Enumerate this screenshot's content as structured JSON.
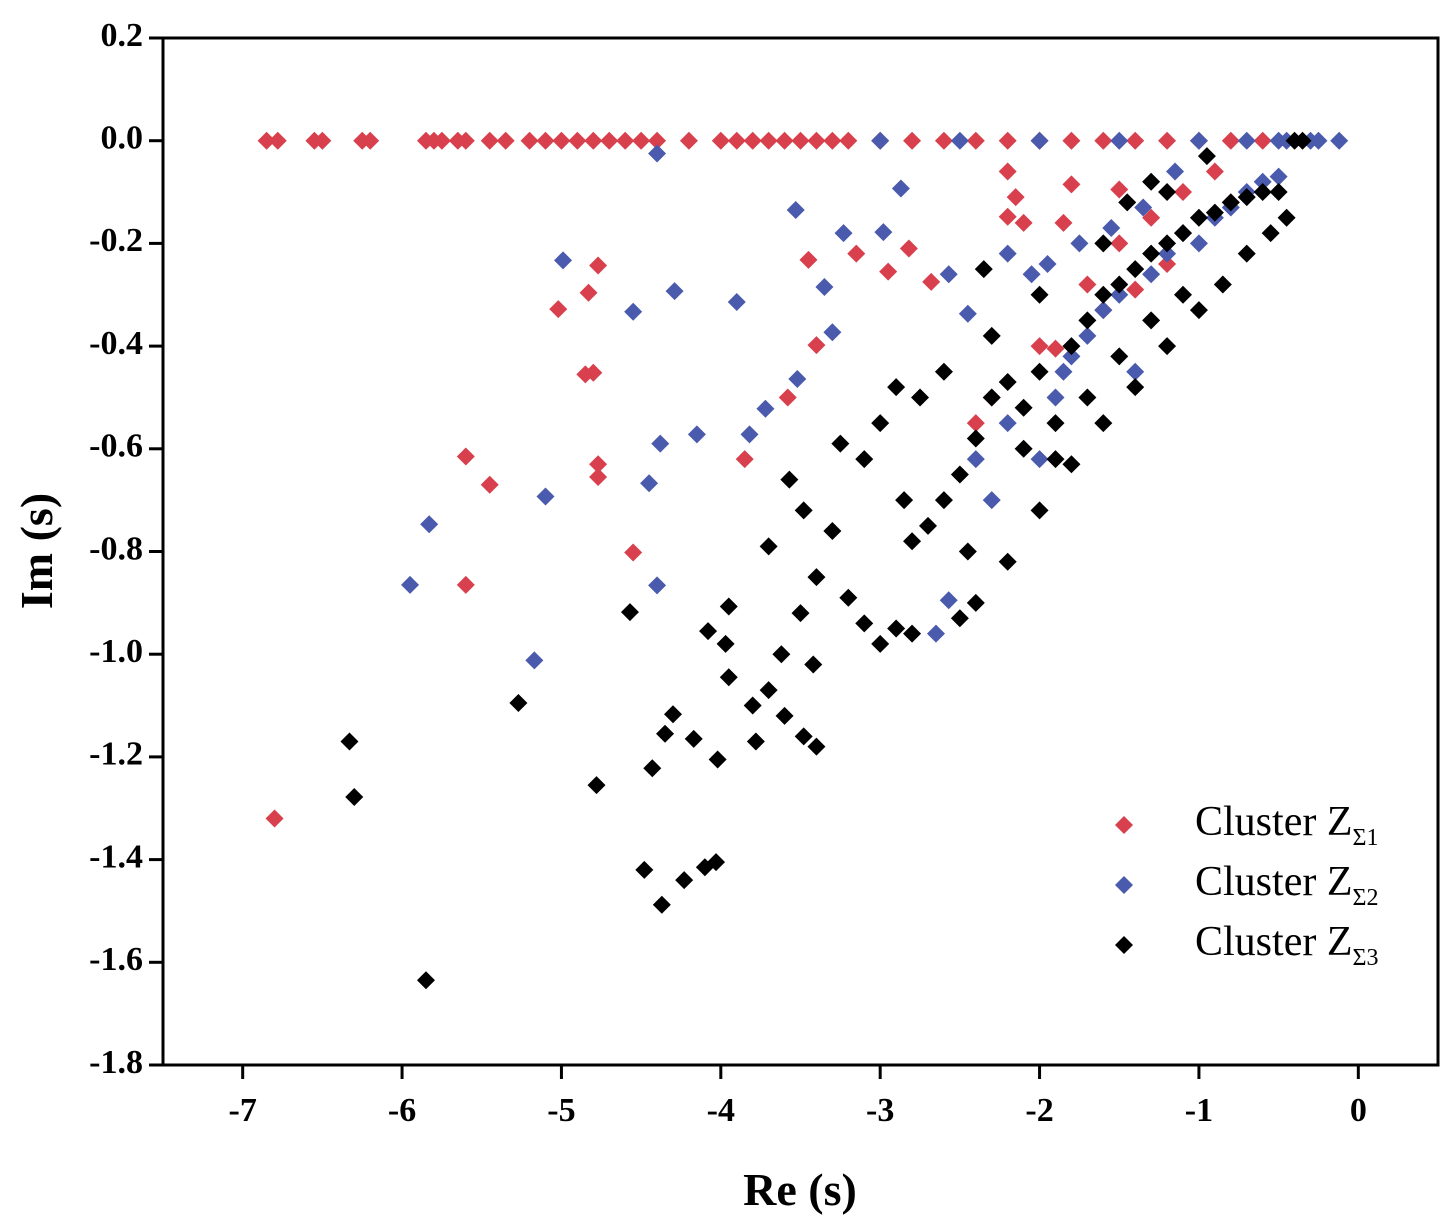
{
  "chart_data": {
    "type": "scatter",
    "x_label": "Re (s)",
    "y_label": "Im (s)",
    "xlim": [
      -7.5,
      0.5
    ],
    "ylim": [
      -1.8,
      0.2
    ],
    "xticks": [
      -7,
      -6,
      -5,
      -4,
      -3,
      -2,
      -1,
      0
    ],
    "yticks": [
      0.2,
      {
        "value": 0,
        "label": "0.0"
      },
      -0.2,
      -0.4,
      -0.6,
      -0.8,
      {
        "value": -1,
        "label": "-1.0"
      },
      -1.2,
      -1.4,
      -1.6,
      -1.8
    ],
    "legend": "lower right",
    "series": [
      {
        "name": "Cluster ZΣ1",
        "color": "#d9404e",
        "x": [
          -6.85,
          -6.78,
          -6.55,
          -6.5,
          -6.25,
          -6.2,
          -5.85,
          -5.8,
          -5.75,
          -5.65,
          -5.6,
          -5.45,
          -5.35,
          -5.2,
          -5.1,
          -5.0,
          -4.9,
          -4.8,
          -4.7,
          -4.6,
          -4.5,
          -4.4,
          -4.2,
          -4.0,
          -3.9,
          -3.8,
          -3.7,
          -3.6,
          -3.5,
          -3.4,
          -3.3,
          -3.2,
          -3.0,
          -2.8,
          -2.6,
          -2.4,
          -2.2,
          -2.0,
          -1.8,
          -1.6,
          -1.4,
          -1.2,
          -1.0,
          -0.8,
          -0.6,
          -6.8,
          -5.6,
          -5.6,
          -5.45,
          -5.02,
          -4.85,
          -4.8,
          -4.83,
          -4.77,
          -4.77,
          -4.77,
          -4.55,
          -3.85,
          -3.58,
          -3.4,
          -3.45,
          -3.15,
          -2.95,
          -2.82,
          -2.68,
          -2.2,
          -2.15,
          -2.2,
          -2.1,
          -1.8,
          -1.5,
          -1.85,
          -2.0,
          -1.9,
          -1.7,
          -1.5,
          -1.3,
          -1.1,
          -0.9,
          -2.3,
          -1.6,
          -1.2,
          -0.8,
          -2.4,
          -1.4
        ],
        "values": [
          0,
          0,
          0,
          0,
          0,
          0,
          0,
          0,
          0,
          0,
          0,
          0,
          0,
          0,
          0,
          0,
          0,
          0,
          0,
          0,
          0,
          0,
          0,
          0,
          0,
          0,
          0,
          0,
          0,
          0,
          0,
          0,
          0,
          0,
          0,
          0,
          0,
          0,
          0,
          0,
          0,
          0,
          0,
          0,
          0,
          -1.32,
          -0.615,
          -0.865,
          -0.67,
          -0.328,
          -0.455,
          -0.452,
          -0.296,
          -0.243,
          -0.63,
          -0.655,
          -0.802,
          -0.62,
          -0.5,
          -0.398,
          -0.232,
          -0.22,
          -0.255,
          -0.21,
          -0.275,
          -0.06,
          -0.11,
          -0.148,
          -0.16,
          -0.085,
          -0.095,
          -0.16,
          -0.4,
          -0.405,
          -0.28,
          -0.2,
          -0.15,
          -0.1,
          -0.06,
          -0.5,
          -0.33,
          -0.24,
          -0.12,
          -0.55,
          -0.29
        ]
      },
      {
        "name": "Cluster ZΣ2",
        "color": "#4a5aad",
        "x": [
          -4.4,
          -3.0,
          -2.5,
          -2.0,
          -1.5,
          -1.0,
          -0.7,
          -0.5,
          -0.45,
          -0.3,
          -0.25,
          -0.12,
          -5.95,
          -5.83,
          -5.17,
          -5.1,
          -4.99,
          -4.55,
          -4.45,
          -4.4,
          -4.38,
          -4.29,
          -4.15,
          -3.9,
          -3.82,
          -3.72,
          -3.52,
          -3.53,
          -3.35,
          -3.3,
          -3.23,
          -2.98,
          -2.87,
          -2.57,
          -2.45,
          -2.65,
          -2.57,
          -2.3,
          -2.0,
          -1.9,
          -1.8,
          -1.7,
          -1.6,
          -1.5,
          -1.4,
          -1.3,
          -1.2,
          -1.1,
          -1.0,
          -0.9,
          -0.8,
          -0.7,
          -0.6,
          -0.5,
          -2.2,
          -2.05,
          -1.95,
          -1.75,
          -1.55,
          -1.35,
          -1.15,
          -2.4,
          -2.2,
          -1.85
        ],
        "values": [
          -0.025,
          0,
          0,
          0,
          0,
          0,
          0,
          0,
          0,
          0,
          0,
          0,
          -0.865,
          -0.747,
          -1.012,
          -0.693,
          -0.233,
          -0.333,
          -0.667,
          -0.866,
          -0.59,
          -0.293,
          -0.572,
          -0.314,
          -0.572,
          -0.522,
          -0.464,
          -0.135,
          -0.285,
          -0.373,
          -0.18,
          -0.178,
          -0.093,
          -0.26,
          -0.337,
          -0.96,
          -0.895,
          -0.7,
          -0.62,
          -0.5,
          -0.42,
          -0.38,
          -0.33,
          -0.3,
          -0.45,
          -0.26,
          -0.22,
          -0.18,
          -0.2,
          -0.15,
          -0.13,
          -0.1,
          -0.08,
          -0.07,
          -0.22,
          -0.26,
          -0.24,
          -0.2,
          -0.17,
          -0.13,
          -0.06,
          -0.62,
          -0.55,
          -0.45
        ]
      },
      {
        "name": "Cluster ZΣ3",
        "color": "#000000",
        "x": [
          -5.85,
          -6.33,
          -6.3,
          -5.27,
          -4.78,
          -4.48,
          -4.37,
          -4.23,
          -4.1,
          -4.03,
          -4.43,
          -4.35,
          -4.3,
          -4.17,
          -4.02,
          -3.95,
          -3.97,
          -4.08,
          -3.95,
          -4.57,
          -3.78,
          -3.8,
          -3.7,
          -3.62,
          -3.6,
          -3.48,
          -3.4,
          -3.42,
          -3.57,
          -3.48,
          -3.7,
          -3.5,
          -3.4,
          -3.3,
          -3.2,
          -3.1,
          -3.0,
          -2.9,
          -2.8,
          -3.25,
          -3.1,
          -3.0,
          -2.9,
          -2.75,
          -2.6,
          -2.85,
          -2.7,
          -2.5,
          -2.4,
          -2.3,
          -2.2,
          -2.1,
          -2.0,
          -1.9,
          -1.8,
          -1.7,
          -1.6,
          -1.5,
          -1.4,
          -1.3,
          -1.2,
          -1.1,
          -1.0,
          -0.9,
          -0.8,
          -0.7,
          -0.6,
          -0.5,
          -0.4,
          -0.35,
          -0.45,
          -0.55,
          -0.7,
          -0.85,
          -1.0,
          -1.2,
          -1.4,
          -1.6,
          -1.8,
          -2.0,
          -2.2,
          -2.4,
          -2.5,
          -2.1,
          -1.9,
          -1.5,
          -1.3,
          -1.1,
          -2.6,
          -2.8,
          -2.45,
          -1.7,
          -2.3,
          -2.0,
          -1.6,
          -1.45,
          -1.2,
          -0.95,
          -2.35,
          -1.3
        ],
        "values": [
          -1.635,
          -1.17,
          -1.278,
          -1.095,
          -1.255,
          -1.42,
          -1.488,
          -1.44,
          -1.415,
          -1.405,
          -1.222,
          -1.155,
          -1.117,
          -1.165,
          -1.205,
          -1.045,
          -0.98,
          -0.955,
          -0.907,
          -0.918,
          -1.17,
          -1.1,
          -1.07,
          -1.0,
          -1.12,
          -1.16,
          -1.18,
          -1.02,
          -0.66,
          -0.72,
          -0.79,
          -0.92,
          -0.85,
          -0.76,
          -0.89,
          -0.94,
          -0.98,
          -0.95,
          -0.96,
          -0.59,
          -0.62,
          -0.55,
          -0.48,
          -0.5,
          -0.45,
          -0.7,
          -0.75,
          -0.65,
          -0.58,
          -0.5,
          -0.47,
          -0.52,
          -0.45,
          -0.55,
          -0.4,
          -0.35,
          -0.3,
          -0.28,
          -0.25,
          -0.22,
          -0.2,
          -0.18,
          -0.15,
          -0.14,
          -0.12,
          -0.11,
          -0.1,
          -0.1,
          0,
          0,
          -0.15,
          -0.18,
          -0.22,
          -0.28,
          -0.33,
          -0.4,
          -0.48,
          -0.55,
          -0.63,
          -0.72,
          -0.82,
          -0.9,
          -0.93,
          -0.6,
          -0.62,
          -0.42,
          -0.35,
          -0.3,
          -0.7,
          -0.78,
          -0.8,
          -0.5,
          -0.38,
          -0.3,
          -0.2,
          -0.12,
          -0.1,
          -0.03,
          -0.25,
          -0.08
        ]
      }
    ]
  }
}
